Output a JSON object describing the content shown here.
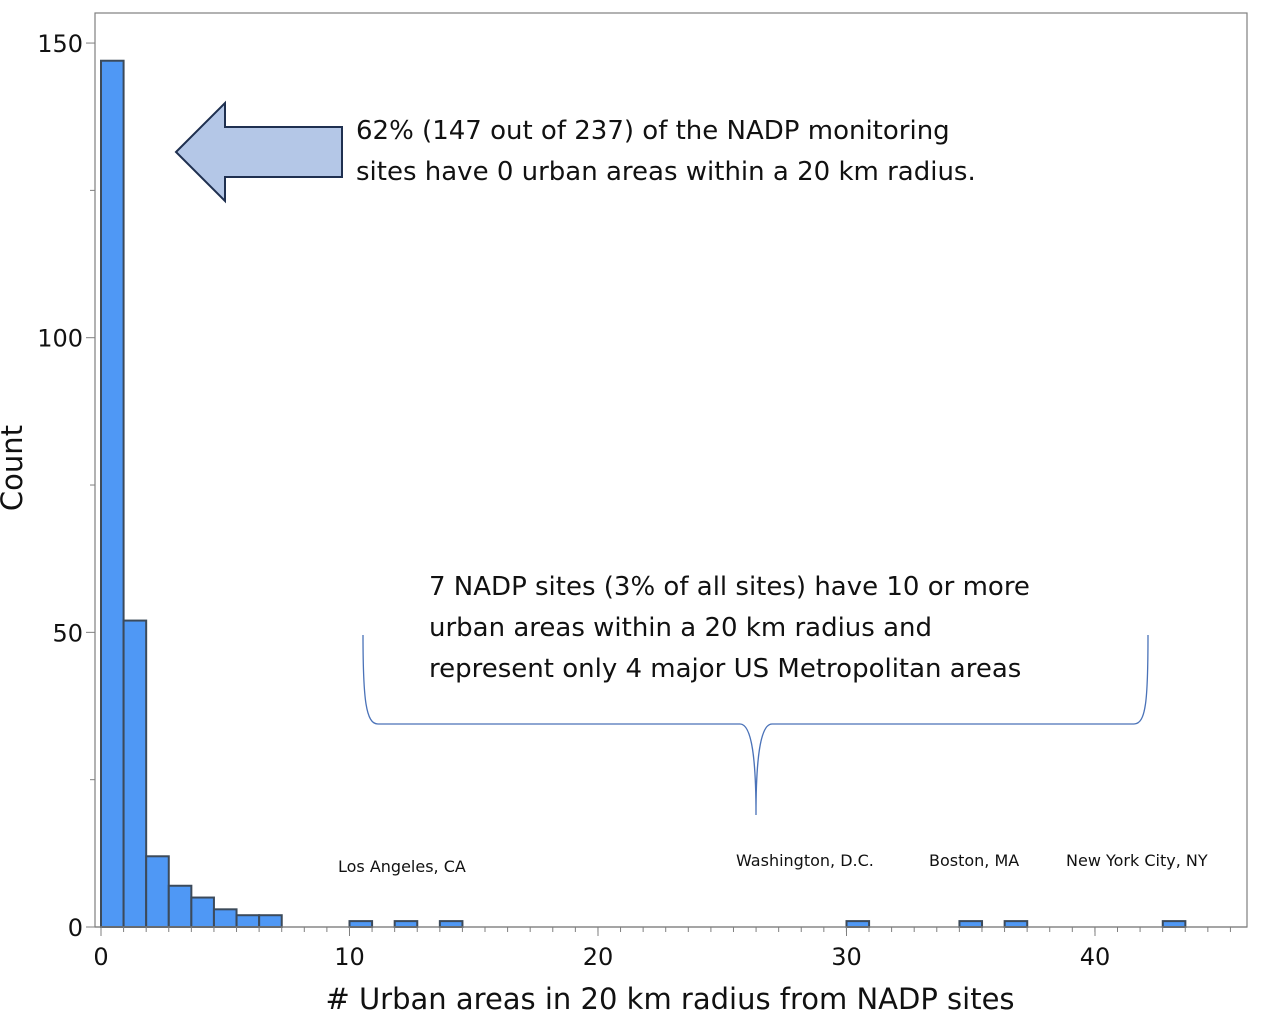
{
  "chart_data": {
    "type": "bar",
    "subtype": "histogram",
    "title": "",
    "xlabel": "# Urban areas in 20 km radius from NADP sites",
    "ylabel": "Count",
    "xlim": [
      -0.1,
      46
    ],
    "ylim": [
      0,
      155
    ],
    "x_ticks": [
      0,
      10,
      20,
      30,
      40
    ],
    "y_ticks": [
      0,
      50,
      100,
      150
    ],
    "bin_width": 0.909,
    "bins": [
      {
        "x": 0.0,
        "count": 147
      },
      {
        "x": 0.909,
        "count": 52
      },
      {
        "x": 1.818,
        "count": 12
      },
      {
        "x": 2.727,
        "count": 7
      },
      {
        "x": 3.636,
        "count": 5
      },
      {
        "x": 4.545,
        "count": 3
      },
      {
        "x": 5.455,
        "count": 2
      },
      {
        "x": 6.364,
        "count": 2
      },
      {
        "x": 10.0,
        "count": 1
      },
      {
        "x": 11.818,
        "count": 1
      },
      {
        "x": 13.636,
        "count": 1
      },
      {
        "x": 30.0,
        "count": 1
      },
      {
        "x": 34.545,
        "count": 1
      },
      {
        "x": 36.364,
        "count": 1
      },
      {
        "x": 42.727,
        "count": 1
      }
    ],
    "grid": false,
    "legend": null,
    "annotations": [
      "62% (147 out of 237) of the NADP monitoring sites have 0 urban areas within a 20 km radius.",
      "7 NADP sites (3% of all sites) have 10 or more urban areas within a 20 km radius and represent only 4 major US Metropolitan areas"
    ],
    "colors": {
      "bar_fill": "#4f98f5",
      "bar_edge": "#3c4a5a",
      "arrow_fill": "#b4c7e7",
      "arrow_edge": "#1f3050",
      "brace": "#4a72b8",
      "frame": "#7f7f7f"
    }
  },
  "annotations": {
    "arrow_note": {
      "line1": "62% (147 out of 237) of the NADP monitoring",
      "line2": "sites have 0 urban areas within a 20 km radius."
    },
    "brace_note": {
      "line1": "7 NADP sites (3% of all sites) have 10 or more",
      "line2": "urban areas within a 20 km radius and",
      "line3": "represent only 4 major US Metropolitan areas"
    },
    "cities": [
      {
        "label": "Los Angeles, CA"
      },
      {
        "label": "Washington, D.C."
      },
      {
        "label": "Boston, MA"
      },
      {
        "label": "New York City, NY"
      }
    ]
  }
}
